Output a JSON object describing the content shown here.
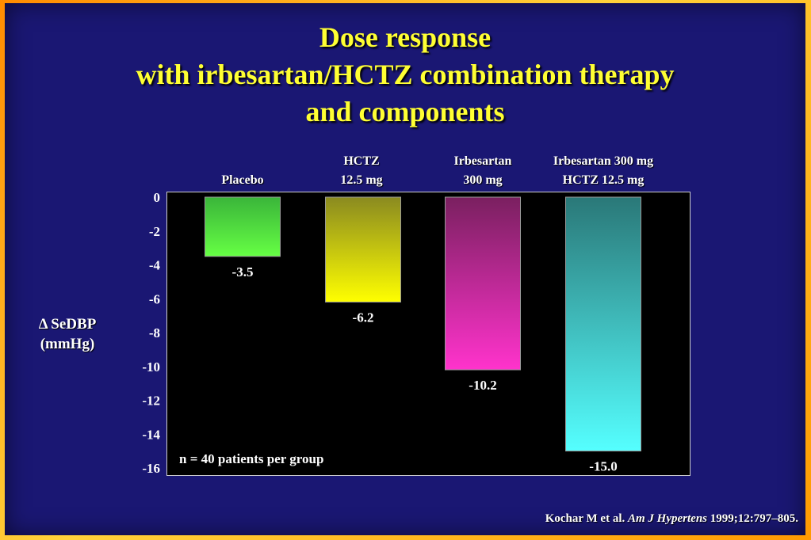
{
  "title_lines": [
    "Dose response",
    "with irbesartan/HCTZ combination therapy",
    "and components"
  ],
  "ylabel_lines": [
    "Δ SeDBP",
    "(mmHg)"
  ],
  "note": "n = 40 patients per group",
  "citation": {
    "authors": "Kochar M et al.",
    "journal": "Am J Hypertens",
    "details": "1999;12:797–805."
  },
  "colors": {
    "background": "#1a1773",
    "title": "#ffff33",
    "plot_background": "#000000"
  },
  "chart_data": {
    "type": "bar",
    "title": "Dose response with irbesartan/HCTZ combination therapy and components",
    "xlabel": "",
    "ylabel": "Δ SeDBP (mmHg)",
    "ylim": [
      -16,
      0
    ],
    "yticks": [
      0,
      -2,
      -4,
      -6,
      -8,
      -10,
      -12,
      -14,
      -16
    ],
    "categories": [
      [
        "Placebo"
      ],
      [
        "HCTZ",
        "12.5 mg"
      ],
      [
        "Irbesartan",
        "300 mg"
      ],
      [
        "Irbesartan 300 mg",
        "HCTZ 12.5 mg"
      ]
    ],
    "values": [
      -3.5,
      -6.2,
      -10.2,
      -15.0
    ],
    "value_labels": [
      "-3.5",
      "-6.2",
      "-10.2",
      "-15.0"
    ],
    "bar_colors": [
      [
        "#3ab53a",
        "#66ff44"
      ],
      [
        "#8a8a20",
        "#ffff00"
      ],
      [
        "#7a2060",
        "#ff33cc"
      ],
      [
        "#2a7878",
        "#55ffff"
      ]
    ],
    "grid": false
  }
}
